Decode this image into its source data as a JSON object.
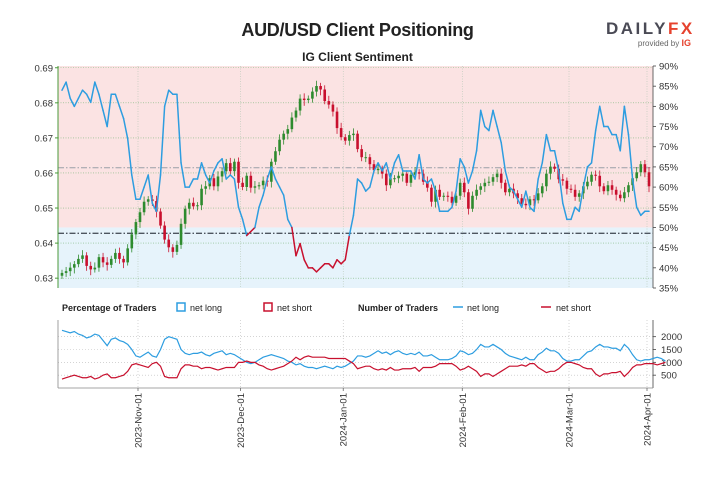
{
  "title": "AUD/USD Client Positioning",
  "subtitle": "IG Client Sentiment",
  "logo": {
    "brand_main": "DAILY",
    "brand_accent": "FX",
    "provided_by": "provided by",
    "provider": "IG"
  },
  "colors": {
    "long": "#2d9de0",
    "short": "#c8102e",
    "long_fill": "#e6f3fb",
    "short_fill": "#fbe3e3",
    "candle_up": "#2e8b2e",
    "candle_down": "#c8102e",
    "axis_green": "#4a9a3a"
  },
  "legend": {
    "pct_title": "Percentage of Traders",
    "pct_long": "net long",
    "pct_short": "net short",
    "num_title": "Number of Traders",
    "num_long": "net long",
    "num_short": "net short"
  },
  "chart_data": [
    {
      "type": "candlestick",
      "title": "AUD/USD Client Positioning",
      "subtitle": "IG Client Sentiment",
      "y_left_ticks": [
        "0.63",
        "0.64",
        "0.65",
        "0.66",
        "0.67",
        "0.68",
        "0.69"
      ],
      "y_right_ticks": [
        "35%",
        "40%",
        "45%",
        "50%",
        "55%",
        "60%",
        "65%",
        "70%",
        "75%",
        "80%",
        "85%",
        "90%"
      ],
      "ylim_price": [
        0.6272,
        0.6905
      ],
      "ylim_pct": [
        35,
        90
      ],
      "x_ticks": [
        "2023-Nov-01",
        "2023-Dec-01",
        "2024-Jan-01",
        "2024-Feb-01",
        "2024-Mar-01",
        "2024-Apr-01"
      ],
      "reference_lines": [
        0.6615,
        0.6428
      ],
      "price_close": [
        0.6315,
        0.632,
        0.633,
        0.634,
        0.6355,
        0.6365,
        0.6335,
        0.6325,
        0.633,
        0.636,
        0.6345,
        0.6338,
        0.6355,
        0.6372,
        0.6355,
        0.6345,
        0.6385,
        0.6425,
        0.646,
        0.6488,
        0.6518,
        0.6525,
        0.652,
        0.649,
        0.645,
        0.641,
        0.6388,
        0.6375,
        0.6395,
        0.6455,
        0.6498,
        0.6515,
        0.6505,
        0.6508,
        0.6555,
        0.6562,
        0.6585,
        0.6562,
        0.659,
        0.6605,
        0.6628,
        0.6605,
        0.6632,
        0.6572,
        0.656,
        0.6592,
        0.6558,
        0.6562,
        0.6565,
        0.6578,
        0.6575,
        0.6632,
        0.6662,
        0.6695,
        0.6712,
        0.6725,
        0.6758,
        0.6778,
        0.6812,
        0.6808,
        0.6812,
        0.6832,
        0.6848,
        0.6838,
        0.6805,
        0.6795,
        0.6775,
        0.6728,
        0.6702,
        0.6692,
        0.6708,
        0.6712,
        0.6668,
        0.6645,
        0.6645,
        0.6625,
        0.6608,
        0.6612,
        0.6598,
        0.6565,
        0.6585,
        0.6585,
        0.6592,
        0.6598,
        0.6572,
        0.6595,
        0.6602,
        0.6598,
        0.6575,
        0.6558,
        0.6518,
        0.6552,
        0.6532,
        0.6535,
        0.6532,
        0.6515,
        0.6535,
        0.6572,
        0.6545,
        0.6498,
        0.6535,
        0.6552,
        0.6562,
        0.6572,
        0.6575,
        0.6588,
        0.6598,
        0.6572,
        0.6545,
        0.6555,
        0.6542,
        0.6528,
        0.6512,
        0.6508,
        0.6525,
        0.6522,
        0.6542,
        0.6562,
        0.6598,
        0.6618,
        0.6612,
        0.6582,
        0.6578,
        0.6555,
        0.6552,
        0.6532,
        0.6542,
        0.6562,
        0.6575,
        0.6595,
        0.6592,
        0.6562,
        0.6548,
        0.6565,
        0.6552,
        0.6538,
        0.6528,
        0.6545,
        0.6565,
        0.6585,
        0.6602,
        0.6625,
        0.6602,
        0.6562
      ],
      "pct_long": [
        84,
        86,
        82,
        80,
        82,
        84,
        83,
        81,
        86,
        83,
        79,
        75,
        83,
        83,
        80,
        77,
        72,
        63,
        57,
        57,
        60,
        63,
        56,
        54,
        63,
        80,
        84,
        83,
        83,
        66,
        60,
        60,
        62,
        62,
        66,
        63,
        61,
        64,
        66,
        67,
        62,
        63,
        62,
        55,
        52,
        48,
        49,
        50,
        55,
        58,
        62,
        65,
        62,
        60,
        58,
        52,
        50,
        43,
        46,
        42,
        40,
        40,
        39,
        40,
        41,
        41,
        40,
        42,
        41,
        42,
        48,
        53,
        62,
        61,
        59,
        60,
        64,
        66,
        64,
        66,
        62,
        66,
        68,
        64,
        64,
        64,
        62,
        68,
        62,
        61,
        62,
        59,
        54,
        54,
        54,
        55,
        59,
        67,
        65,
        61,
        64,
        69,
        79,
        75,
        74,
        79,
        75,
        71,
        64,
        60,
        59,
        57,
        55,
        59,
        55,
        54,
        62,
        66,
        73,
        69,
        69,
        64,
        56,
        52,
        52,
        55,
        54,
        60,
        65,
        66,
        74,
        80,
        75,
        75,
        73,
        73,
        69,
        80,
        73,
        62,
        55,
        53,
        54,
        54,
        55,
        57,
        55,
        53
      ],
      "num_long": [
        2250,
        2200,
        2150,
        2200,
        2100,
        2050,
        1950,
        2000,
        2100,
        2050,
        1850,
        1650,
        1900,
        1950,
        1850,
        1800,
        1700,
        1500,
        1250,
        1200,
        1300,
        1400,
        1250,
        1200,
        1500,
        1900,
        2000,
        1950,
        1900,
        1500,
        1350,
        1300,
        1350,
        1350,
        1400,
        1300,
        1250,
        1350,
        1400,
        1450,
        1300,
        1350,
        1300,
        1200,
        1100,
        1000,
        950,
        1000,
        1100,
        1200,
        1250,
        1300,
        1250,
        1200,
        1150,
        1050,
        1000,
        900,
        950,
        850,
        800,
        800,
        750,
        800,
        850,
        800,
        750,
        850,
        800,
        850,
        950,
        1050,
        1250,
        1250,
        1200,
        1250,
        1350,
        1450,
        1350,
        1400,
        1300,
        1400,
        1450,
        1350,
        1300,
        1350,
        1300,
        1400,
        1250,
        1250,
        1300,
        1200,
        1100,
        1100,
        1100,
        1150,
        1250,
        1450,
        1400,
        1300,
        1350,
        1500,
        1700,
        1600,
        1600,
        1700,
        1600,
        1500,
        1350,
        1250,
        1200,
        1150,
        1100,
        1200,
        1100,
        1100,
        1300,
        1400,
        1550,
        1450,
        1450,
        1350,
        1150,
        1050,
        1050,
        1100,
        1100,
        1250,
        1400,
        1450,
        1600,
        1700,
        1600,
        1600,
        1550,
        1550,
        1450,
        1700,
        1550,
        1300,
        1100,
        1050,
        1100,
        1100,
        1150,
        1200,
        1150,
        1050
      ],
      "num_short": [
        350,
        400,
        450,
        500,
        450,
        400,
        400,
        450,
        350,
        400,
        500,
        550,
        400,
        400,
        450,
        500,
        650,
        900,
        950,
        900,
        850,
        800,
        950,
        1000,
        850,
        450,
        400,
        400,
        400,
        750,
        900,
        900,
        850,
        850,
        750,
        800,
        800,
        750,
        700,
        750,
        800,
        800,
        800,
        1000,
        1000,
        1050,
        1000,
        1000,
        900,
        850,
        750,
        700,
        750,
        800,
        850,
        950,
        1050,
        1200,
        1100,
        1200,
        1250,
        1200,
        1200,
        1200,
        1200,
        1150,
        1150,
        1150,
        1150,
        1150,
        1050,
        950,
        750,
        800,
        850,
        850,
        750,
        700,
        750,
        700,
        800,
        700,
        700,
        750,
        750,
        750,
        800,
        650,
        800,
        800,
        800,
        850,
        950,
        950,
        950,
        950,
        850,
        700,
        750,
        850,
        750,
        650,
        450,
        550,
        550,
        450,
        550,
        650,
        750,
        850,
        850,
        850,
        900,
        850,
        950,
        950,
        800,
        700,
        600,
        650,
        650,
        750,
        900,
        1000,
        1000,
        950,
        900,
        800,
        750,
        750,
        550,
        450,
        550,
        550,
        600,
        600,
        650,
        450,
        600,
        800,
        900,
        900,
        950,
        950,
        950,
        900,
        950,
        1000
      ],
      "ylim_counts": [
        0,
        2650
      ],
      "y_counts_ticks": [
        "500",
        "1000",
        "1500",
        "2000"
      ]
    }
  ]
}
